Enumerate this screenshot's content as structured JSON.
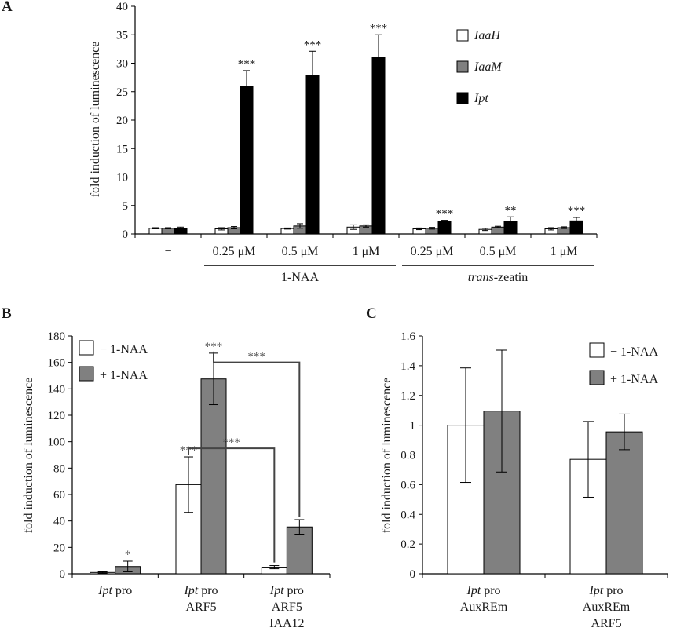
{
  "panel_labels": {
    "a": "A",
    "b": "B",
    "c": "C"
  },
  "colors": {
    "white": "#ffffff",
    "grey": "#808080",
    "black": "#000000",
    "stroke": "#000000",
    "star_grey": "#555555"
  },
  "chart_data": [
    {
      "id": "A",
      "type": "bar",
      "ylabel": "fold induction of luminescence",
      "ylim": [
        0,
        40
      ],
      "yticks": [
        0,
        5,
        10,
        15,
        20,
        25,
        30,
        35,
        40
      ],
      "grid": false,
      "legend_placement": "top-right",
      "categories": [
        "−",
        "0.25 μM",
        "0.5 μM",
        "1 μM",
        "0.25 μM",
        "0.5 μM",
        "1 μM"
      ],
      "groups": [
        {
          "label": "1-NAA",
          "italic_prefix": "",
          "rest": "1-NAA",
          "from": 1,
          "to": 3
        },
        {
          "label": "trans-zeatin",
          "italic_prefix": "trans",
          "rest": "-zeatin",
          "from": 4,
          "to": 6
        }
      ],
      "series": [
        {
          "name": "IaaH",
          "italic": true,
          "color_key": "white",
          "values": [
            1.0,
            0.9,
            0.95,
            1.2,
            0.9,
            0.8,
            0.9
          ],
          "errors": [
            0.1,
            0.2,
            0.1,
            0.4,
            0.15,
            0.2,
            0.2
          ],
          "stars": [
            "",
            "",
            "",
            "",
            "",
            "",
            ""
          ]
        },
        {
          "name": "IaaM",
          "italic": true,
          "color_key": "grey",
          "values": [
            1.0,
            1.1,
            1.4,
            1.4,
            1.0,
            1.2,
            1.1
          ],
          "errors": [
            0.1,
            0.2,
            0.4,
            0.2,
            0.15,
            0.15,
            0.15
          ],
          "stars": [
            "",
            "",
            "",
            "",
            "",
            "",
            ""
          ]
        },
        {
          "name": "Ipt",
          "italic": true,
          "color_key": "black",
          "values": [
            1.0,
            26.0,
            27.8,
            31.0,
            2.2,
            2.2,
            2.3
          ],
          "errors": [
            0.2,
            2.7,
            4.3,
            4.0,
            0.2,
            0.8,
            0.6
          ],
          "stars": [
            "",
            "***",
            "***",
            "***",
            "***",
            "**",
            "***"
          ]
        }
      ]
    },
    {
      "id": "B",
      "type": "bar",
      "ylabel": "fold induction of luminescence",
      "ylim": [
        0,
        180
      ],
      "yticks": [
        0,
        20,
        40,
        60,
        80,
        100,
        120,
        140,
        160,
        180
      ],
      "grid": false,
      "legend_placement": "top-left",
      "categories": [
        [
          {
            "t": "Ipt",
            "i": true
          },
          {
            "t": " pro",
            "i": false
          }
        ],
        [
          {
            "t": "Ipt",
            "i": true
          },
          {
            "t": " pro",
            "i": false
          },
          {
            "br": true
          },
          {
            "t": "ARF5",
            "i": false
          }
        ],
        [
          {
            "t": "Ipt",
            "i": true
          },
          {
            "t": " pro",
            "i": false
          },
          {
            "br": true
          },
          {
            "t": "ARF5",
            "i": false
          },
          {
            "br": true
          },
          {
            "t": "IAA12",
            "i": false
          }
        ]
      ],
      "series": [
        {
          "name": "− 1-NAA",
          "italic": false,
          "color_key": "white",
          "values": [
            1.0,
            67.5,
            5.0
          ],
          "errors": [
            0.5,
            21.0,
            1.2
          ],
          "stars": [
            "",
            "***",
            ""
          ]
        },
        {
          "name": "+ 1-NAA",
          "italic": false,
          "color_key": "grey",
          "values": [
            5.5,
            147.5,
            35.5
          ],
          "errors": [
            4.0,
            19.5,
            5.5
          ],
          "stars": [
            "*",
            "***",
            ""
          ]
        }
      ],
      "brackets": [
        {
          "from_cat": 1,
          "from_series": 1,
          "to_cat": 2,
          "to_series": 1,
          "y": 160,
          "label": "***"
        },
        {
          "from_cat": 1,
          "from_series": 0,
          "to_cat": 2,
          "to_series": 0,
          "y": 95,
          "label": "***"
        }
      ]
    },
    {
      "id": "C",
      "type": "bar",
      "ylabel": "fold induction of luminescence",
      "ylim": [
        0,
        1.6
      ],
      "yticks": [
        "0",
        "0.2",
        "0.4",
        "0.6",
        "0.8",
        "1",
        "1.2",
        "1.4",
        "1.6"
      ],
      "grid": false,
      "legend_placement": "top-right",
      "categories": [
        [
          {
            "t": "Ipt",
            "i": true
          },
          {
            "t": " pro",
            "i": false
          },
          {
            "br": true
          },
          {
            "t": "AuxREm",
            "i": false
          }
        ],
        [
          {
            "t": "Ipt",
            "i": true
          },
          {
            "t": " pro",
            "i": false
          },
          {
            "br": true
          },
          {
            "t": "AuxREm",
            "i": false
          },
          {
            "br": true
          },
          {
            "t": "ARF5",
            "i": false
          }
        ]
      ],
      "series": [
        {
          "name": "− 1-NAA",
          "italic": false,
          "color_key": "white",
          "values": [
            1.0,
            0.77
          ],
          "errors": [
            0.385,
            0.255
          ],
          "stars": [
            "",
            ""
          ]
        },
        {
          "name": "+ 1-NAA",
          "italic": false,
          "color_key": "grey",
          "values": [
            1.095,
            0.955
          ],
          "errors": [
            0.41,
            0.12
          ],
          "stars": [
            "",
            ""
          ]
        }
      ]
    }
  ]
}
